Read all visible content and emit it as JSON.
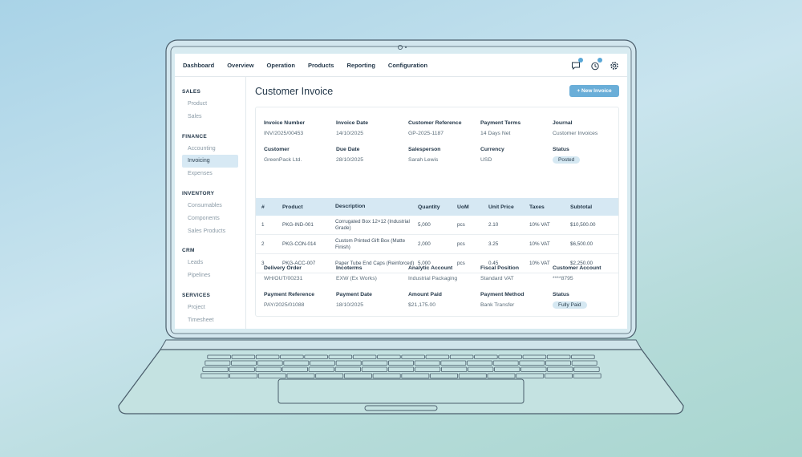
{
  "nav": [
    "Dashboard",
    "Overview",
    "Operation",
    "Products",
    "Reporting",
    "Configuration"
  ],
  "icons": {
    "chat": "chat-icon",
    "history": "history-icon",
    "settings": "gear-icon"
  },
  "sidebar": {
    "sections": [
      {
        "title": "SALES",
        "items": [
          "Product",
          "Sales"
        ]
      },
      {
        "title": "FINANCE",
        "items": [
          "Accounting",
          "Invoicing",
          "Expenses"
        ]
      },
      {
        "title": "INVENTORY",
        "items": [
          "Consumables",
          "Components",
          "Sales Products"
        ]
      },
      {
        "title": "CRM",
        "items": [
          "Leads",
          "Pipelines"
        ]
      },
      {
        "title": "SERVICES",
        "items": [
          "Project",
          "Timesheet"
        ]
      }
    ],
    "active": "Invoicing"
  },
  "page": {
    "title": "Customer Invoice",
    "new_button": "+ New Invoice"
  },
  "header_fields": [
    [
      {
        "label": "Invoice Number",
        "value": "INV/2025/00453"
      },
      {
        "label": "Invoice Date",
        "value": "14/10/2025"
      },
      {
        "label": "Customer Reference",
        "value": "GP-2025-1187"
      },
      {
        "label": "Payment Terms",
        "value": "14 Days Net"
      },
      {
        "label": "Journal",
        "value": "Customer Invoices"
      }
    ],
    [
      {
        "label": "Customer",
        "value": "GreenPack Ltd."
      },
      {
        "label": "Due Date",
        "value": "28/10/2025"
      },
      {
        "label": "Salesperson",
        "value": "Sarah Lewis"
      },
      {
        "label": "Currency",
        "value": "USD"
      },
      {
        "label": "Status",
        "value": "Posted",
        "pill": true
      }
    ]
  ],
  "table": {
    "headers": [
      "#",
      "Product",
      "Description",
      "Quantity",
      "UoM",
      "Unit Price",
      "Taxes",
      "Subtotal"
    ],
    "rows": [
      [
        "1",
        "PKG-IND-001",
        "Corrugated Box 12×12 (Industrial Grade)",
        "5,000",
        "pcs",
        "2.10",
        "10% VAT",
        "$10,500.00"
      ],
      [
        "2",
        "PKG-CON-014",
        "Custom Printed Gift Box (Matte Finish)",
        "2,000",
        "pcs",
        "3.25",
        "10% VAT",
        "$6,500.00"
      ],
      [
        "3",
        "PKG-ACC-007",
        "Paper Tube End Caps (Reinforced)",
        "5,000",
        "pcs",
        "0.45",
        "10% VAT",
        "$2,250.00"
      ]
    ]
  },
  "footer_fields": [
    [
      {
        "label": "Delivery Order",
        "value": "WH/OUT/00231"
      },
      {
        "label": "Incoterms",
        "value": "EXW (Ex Works)"
      },
      {
        "label": "Analytic Account",
        "value": "Industrial Packaging"
      },
      {
        "label": "Fiscal Position",
        "value": "Standard VAT"
      },
      {
        "label": "Customer Account",
        "value": "****8795"
      }
    ],
    [
      {
        "label": "Payment Reference",
        "value": "PAY/2025/01088"
      },
      {
        "label": "Payment Date",
        "value": "18/10/2025"
      },
      {
        "label": "Amount Paid",
        "value": "$21,175.00"
      },
      {
        "label": "Payment Method",
        "value": "Bank Transfer"
      },
      {
        "label": "Status",
        "value": "Fully Paid",
        "pill": true
      }
    ]
  ],
  "colors": {
    "accent": "#6aaed8",
    "table_header": "#d6e8f3",
    "active_item": "#d7e9f4"
  }
}
